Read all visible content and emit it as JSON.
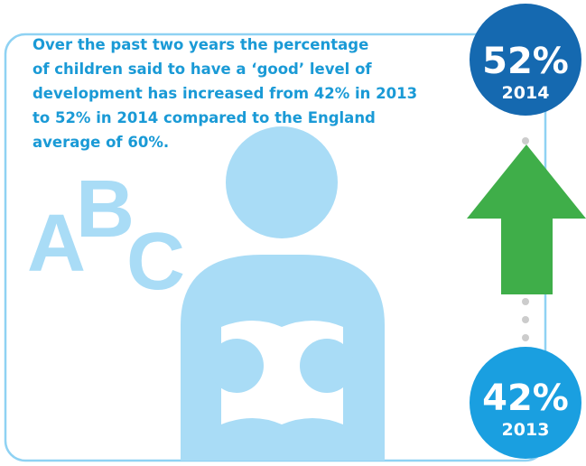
{
  "description_lines": [
    "Over the past two years the percentage",
    "of children said to have a ‘good’ level of",
    "development has increased from 42% in 2013",
    "to 52% in 2014 compared to the England",
    "average of 60%."
  ],
  "letters": [
    "A",
    "B",
    "C"
  ],
  "top": {
    "value": "52%",
    "year": "2014"
  },
  "bottom": {
    "value": "42%",
    "year": "2013"
  }
}
